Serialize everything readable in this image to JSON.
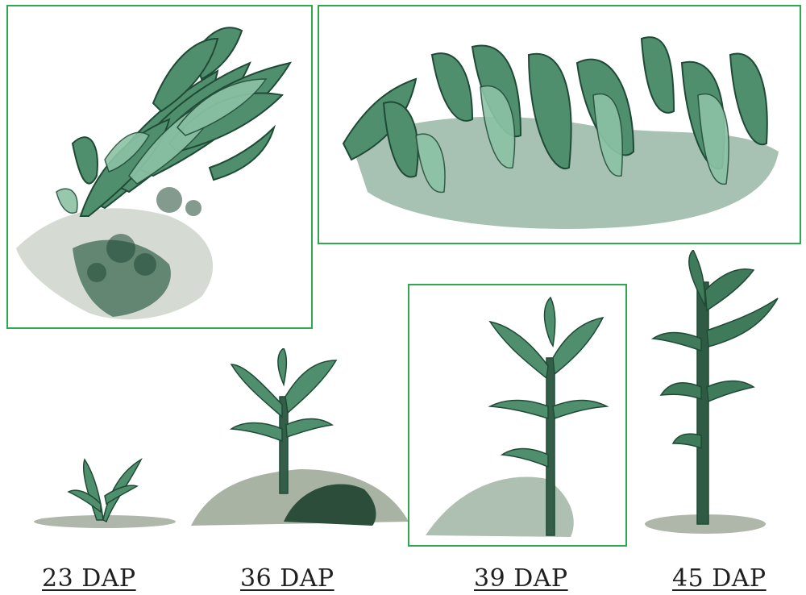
{
  "labels": {
    "dap23": "23 DAP",
    "dap36": "36 DAP",
    "dap39": "39 DAP",
    "dap45": "45 DAP"
  },
  "colors": {
    "frame": "#2fa84f",
    "leaf_light": "#7fb89a",
    "leaf_mid": "#4f8f6e",
    "leaf_dark": "#1f4a35",
    "soil": "#9aa595"
  }
}
